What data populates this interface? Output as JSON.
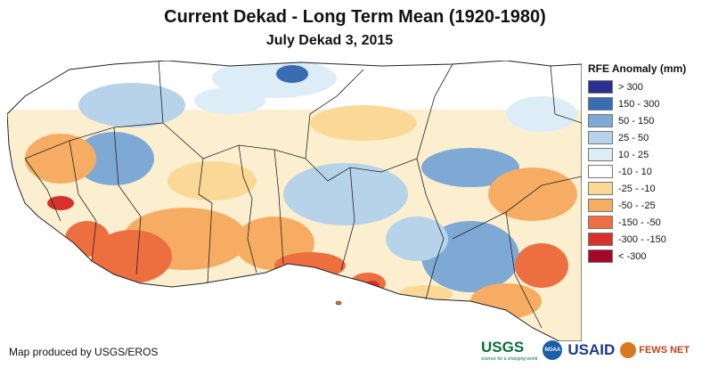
{
  "title": "Current Dekad - Long Term Mean (1920-1980)",
  "subtitle": "July Dekad 3, 2015",
  "legend": {
    "title": "RFE Anomaly (mm)",
    "items": [
      {
        "label": "> 300",
        "color": "#2b2f8f"
      },
      {
        "label": "150 - 300",
        "color": "#3a6cb3"
      },
      {
        "label": "50 - 150",
        "color": "#7ea9d4"
      },
      {
        "label": "25 - 50",
        "color": "#b7d3ea"
      },
      {
        "label": "10 - 25",
        "color": "#dcedf7"
      },
      {
        "label": "-10 - 10",
        "color": "#ffffff"
      },
      {
        "label": "-25 - -10",
        "color": "#fbd896"
      },
      {
        "label": "-50 - -25",
        "color": "#f6ad63"
      },
      {
        "label": "-150 - -50",
        "color": "#ed6e3f"
      },
      {
        "label": "-300 - -150",
        "color": "#d8312a"
      },
      {
        "label": "< -300",
        "color": "#a3072a"
      }
    ]
  },
  "credit": "Map produced by USGS/EROS",
  "logos": {
    "usgs": "USGS",
    "usgs_tagline": "science for a changing world",
    "noaa": "NOAA",
    "usaid": "USAID",
    "fews": "FEWS NET"
  }
}
